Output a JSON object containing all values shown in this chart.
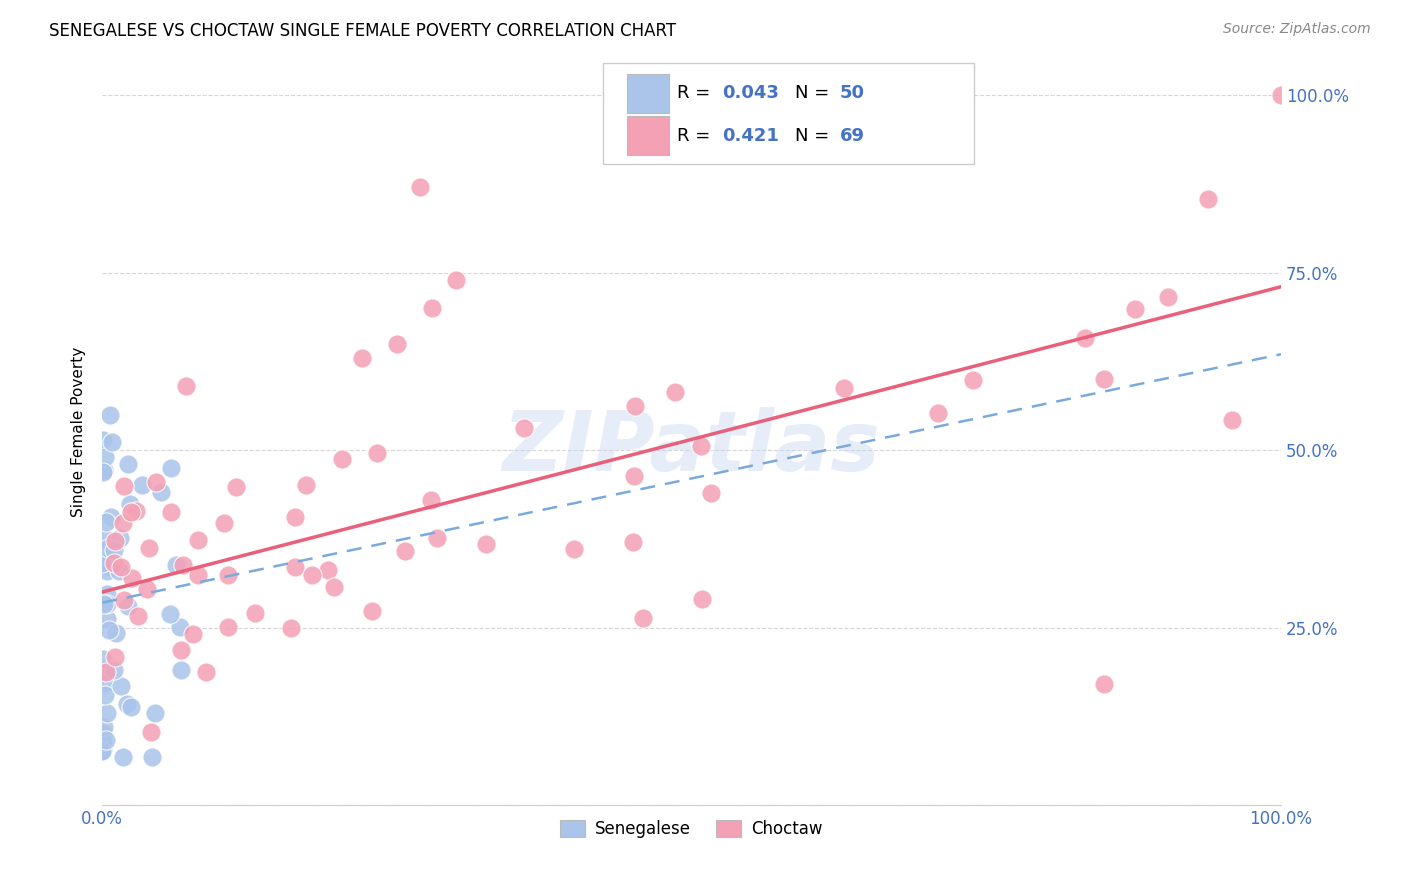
{
  "title": "SENEGALESE VS CHOCTAW SINGLE FEMALE POVERTY CORRELATION CHART",
  "source": "Source: ZipAtlas.com",
  "ylabel": "Single Female Poverty",
  "watermark": "ZIPatlas",
  "scatter_senegalese_color": "#aac4ea",
  "scatter_choctaw_color": "#f4a0b5",
  "line_senegalese_color": "#7aaadd",
  "line_choctaw_color": "#e8607a",
  "tick_color_blue": "#4472c4",
  "grid_color": "#cccccc",
  "axis_bg": "#ffffff",
  "legend_R_sen": "0.043",
  "legend_N_sen": "50",
  "legend_R_cho": "0.421",
  "legend_N_cho": "69",
  "sen_R": 0.043,
  "cho_R": 0.421,
  "xlim": [
    0.0,
    1.0
  ],
  "ylim": [
    0.0,
    1.05
  ]
}
